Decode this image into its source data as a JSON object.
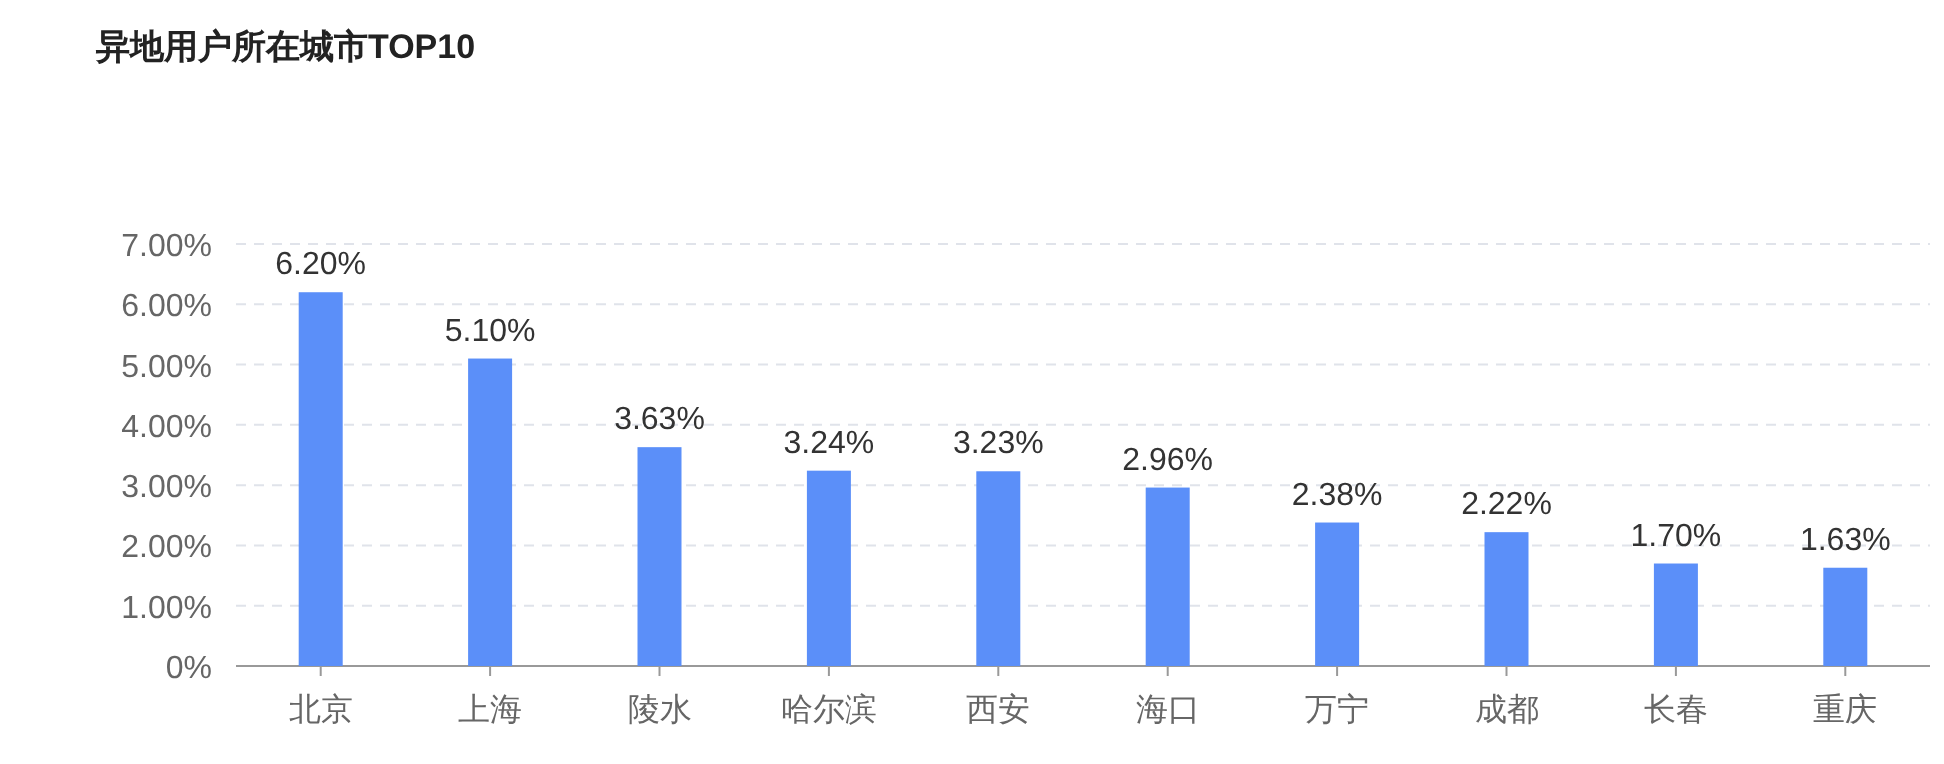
{
  "chart_data": {
    "type": "bar",
    "title": "异地用户所在城市TOP10",
    "categories": [
      "北京",
      "上海",
      "陵水",
      "哈尔滨",
      "西安",
      "海口",
      "万宁",
      "成都",
      "长春",
      "重庆"
    ],
    "values": [
      6.2,
      5.1,
      3.63,
      3.24,
      3.23,
      2.96,
      2.38,
      2.22,
      1.7,
      1.63
    ],
    "value_labels": [
      "6.20%",
      "5.10%",
      "3.63%",
      "3.24%",
      "3.23%",
      "2.96%",
      "2.38%",
      "2.22%",
      "1.70%",
      "1.63%"
    ],
    "color": "#5b8ff9",
    "ylim": [
      0,
      7
    ],
    "yticks": [
      {
        "value": 0,
        "label": "0%"
      },
      {
        "value": 1,
        "label": "1.00%"
      },
      {
        "value": 2,
        "label": "2.00%"
      },
      {
        "value": 3,
        "label": "3.00%"
      },
      {
        "value": 4,
        "label": "4.00%"
      },
      {
        "value": 5,
        "label": "5.00%"
      },
      {
        "value": 6,
        "label": "6.00%"
      },
      {
        "value": 7,
        "label": "7.00%"
      }
    ],
    "grid": "y"
  }
}
